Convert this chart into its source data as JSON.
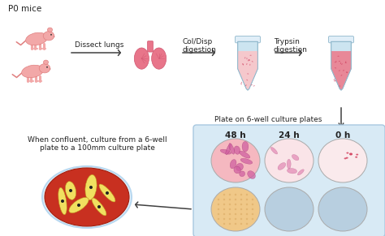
{
  "bg_color": "#ffffff",
  "mouse_color": "#f2a8a8",
  "mouse_edge": "#e08080",
  "lung_color_main": "#e8758a",
  "lung_color_dark": "#d05570",
  "tube_body_color": "#cce4f0",
  "tube_cap_color": "#e0eef8",
  "tube_outline": "#90b8cc",
  "tube1_liquid": "#f5c8cc",
  "tube2_liquid": "#e88898",
  "well_pink": "#f5c0c8",
  "well_pink_light": "#fae0e4",
  "well_blue": "#b8cfe0",
  "well_orange": "#f0c888",
  "panel_fill": "#d8eaf5",
  "panel_edge": "#a8c8e0",
  "petri_red": "#c83020",
  "petri_rim": "#c8e4f8",
  "cell_yellow": "#f0e060",
  "cell_dark": "#c09020",
  "arrow_color": "#404040",
  "text_color": "#222222",
  "labels": {
    "p0_mice": "P0 mice",
    "dissect_lungs": "Dissect lungs",
    "col_disp": "Col/Disp\ndigestion",
    "trypsin": "Trypsin\ndigestion",
    "plate_on": "Plate on 6-well culture plates",
    "48h": "48 h",
    "24h": "24 h",
    "0h": "0 h",
    "when_confluent": "When confluent, culture from a 6-well\nplate to a 100mm culture plate"
  }
}
